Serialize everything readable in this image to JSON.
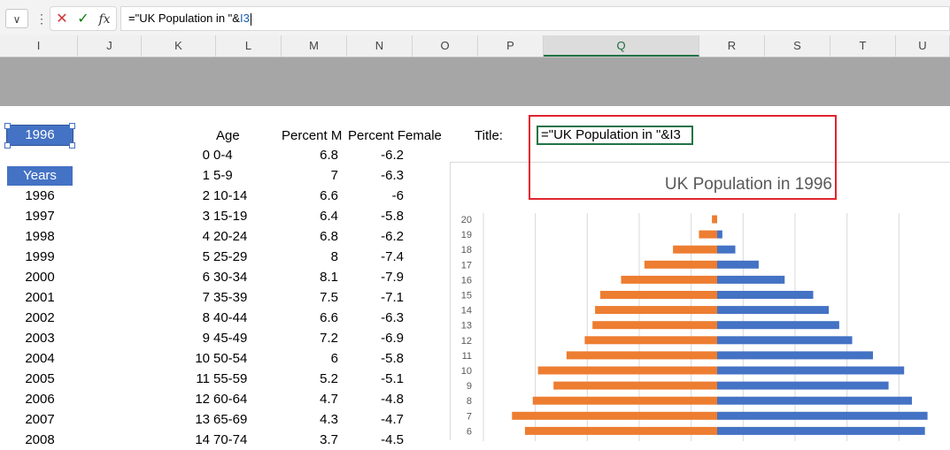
{
  "formula_bar": {
    "namebox_arrow": "∨",
    "more": "⋮",
    "cancel": "✕",
    "enter": "✓",
    "fx": "fx",
    "formula_text": "=\"UK Population in \"&",
    "formula_ref": "I3"
  },
  "columns": [
    "I",
    "J",
    "K",
    "L",
    "M",
    "N",
    "O",
    "P",
    "Q",
    "R",
    "S",
    "T",
    "U"
  ],
  "selected_column": "Q",
  "year_cell": "1996",
  "years": {
    "header": "Years",
    "values": [
      "1996",
      "1997",
      "1998",
      "1999",
      "2000",
      "2001",
      "2002",
      "2003",
      "2004",
      "2005",
      "2006",
      "2007",
      "2008"
    ]
  },
  "table": {
    "headers": {
      "age": "Age",
      "male": "Percent M",
      "female": "Percent Female"
    },
    "rows": [
      {
        "idx": "0",
        "age": "0-4",
        "male": "6.8",
        "female": "-6.2"
      },
      {
        "idx": "1",
        "age": "5-9",
        "male": "7",
        "female": "-6.3"
      },
      {
        "idx": "2",
        "age": "10-14",
        "male": "6.6",
        "female": "-6"
      },
      {
        "idx": "3",
        "age": "15-19",
        "male": "6.4",
        "female": "-5.8"
      },
      {
        "idx": "4",
        "age": "20-24",
        "male": "6.8",
        "female": "-6.2"
      },
      {
        "idx": "5",
        "age": "25-29",
        "male": "8",
        "female": "-7.4"
      },
      {
        "idx": "6",
        "age": "30-34",
        "male": "8.1",
        "female": "-7.9"
      },
      {
        "idx": "7",
        "age": "35-39",
        "male": "7.5",
        "female": "-7.1"
      },
      {
        "idx": "8",
        "age": "40-44",
        "male": "6.6",
        "female": "-6.3"
      },
      {
        "idx": "9",
        "age": "45-49",
        "male": "7.2",
        "female": "-6.9"
      },
      {
        "idx": "10",
        "age": "50-54",
        "male": "6",
        "female": "-5.8"
      },
      {
        "idx": "11",
        "age": "55-59",
        "male": "5.2",
        "female": "-5.1"
      },
      {
        "idx": "12",
        "age": "60-64",
        "male": "4.7",
        "female": "-4.8"
      },
      {
        "idx": "13",
        "age": "65-69",
        "male": "4.3",
        "female": "-4.7"
      },
      {
        "idx": "14",
        "age": "70-74",
        "male": "3.7",
        "female": "-4.5"
      }
    ]
  },
  "title_label": "Title:",
  "title_formula": "=\"UK Population in \"&I3",
  "colors": {
    "accent": "#4472c4",
    "female": "#ed7d31",
    "male": "#4472c4",
    "highlight": "#e0242e",
    "excel_green": "#217346"
  },
  "chart_data": {
    "type": "bar",
    "orientation": "horizontal",
    "title": "UK Population in 1996",
    "categories": [
      "20",
      "19",
      "18",
      "17",
      "16",
      "15",
      "14",
      "13",
      "12",
      "11",
      "10",
      "9",
      "8",
      "7",
      "6"
    ],
    "series": [
      {
        "values": [
          -0.2,
          -0.7,
          -1.7,
          -2.8,
          -3.7,
          -4.5,
          -4.7,
          -4.8,
          -5.1,
          -5.8,
          -6.9,
          -6.3,
          -7.1,
          -7.9,
          -7.4
        ]
      },
      {
        "values": [
          0,
          0.2,
          0.7,
          1.6,
          2.6,
          3.7,
          4.3,
          4.7,
          5.2,
          6.0,
          7.2,
          6.6,
          7.5,
          8.1,
          8.0
        ]
      }
    ],
    "xlim": [
      -9,
      9
    ],
    "grid": true
  }
}
